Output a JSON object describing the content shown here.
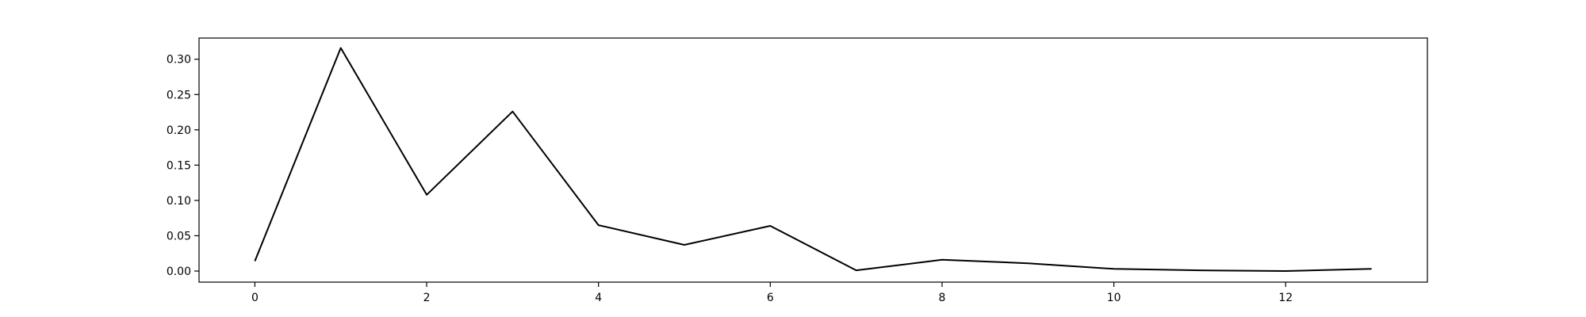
{
  "chart_data": {
    "type": "line",
    "title": "",
    "xlabel": "",
    "ylabel": "",
    "xlim": [
      -0.65,
      13.65
    ],
    "ylim": [
      -0.0157,
      0.33
    ],
    "grid": false,
    "legend": "none",
    "x_ticks": [
      0,
      2,
      4,
      6,
      8,
      10,
      12
    ],
    "y_ticks": [
      0.0,
      0.05,
      0.1,
      0.15,
      0.2,
      0.25,
      0.3
    ],
    "y_tick_labels": [
      "0.00",
      "0.05",
      "0.10",
      "0.15",
      "0.20",
      "0.25",
      "0.30"
    ],
    "series": [
      {
        "color": "#000000",
        "x": [
          0,
          1,
          2,
          3,
          4,
          5,
          6,
          7,
          8,
          9,
          10,
          11,
          12,
          13
        ],
        "values": [
          0.014,
          0.316,
          0.108,
          0.226,
          0.065,
          0.037,
          0.064,
          0.001,
          0.016,
          0.011,
          0.003,
          0.001,
          0.0,
          0.003
        ]
      }
    ]
  }
}
